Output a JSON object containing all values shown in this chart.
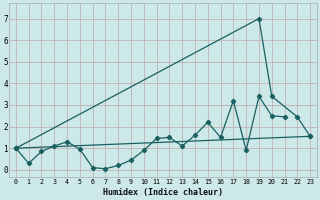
{
  "xlabel": "Humidex (Indice chaleur)",
  "bg_color": "#cce8e8",
  "grid_color": "#c0a8a8",
  "line_color": "#1a6060",
  "ylim": [
    -0.35,
    7.7
  ],
  "xlim": [
    -0.5,
    23.5
  ],
  "yticks": [
    0,
    1,
    2,
    3,
    4,
    5,
    6,
    7
  ],
  "x_labels": [
    "0",
    "1",
    "2",
    "3",
    "4",
    "5",
    "6",
    "7",
    "8",
    "9",
    "10",
    "11",
    "12",
    "13",
    "14",
    "15",
    "16",
    "17",
    "18",
    "19",
    "20",
    "21",
    "22",
    "23"
  ],
  "line1_x": [
    0,
    1,
    2,
    3,
    4,
    5,
    6,
    7,
    8,
    9,
    10,
    11,
    12,
    13,
    14,
    15,
    16,
    17,
    18,
    19,
    20,
    21
  ],
  "line1_y": [
    1.0,
    0.3,
    0.85,
    1.1,
    1.3,
    0.95,
    0.1,
    0.05,
    0.2,
    0.45,
    0.9,
    1.45,
    1.5,
    1.1,
    1.6,
    2.2,
    1.5,
    3.2,
    0.9,
    3.4,
    2.5,
    2.45
  ],
  "line2_x": [
    0,
    19,
    20,
    22,
    23
  ],
  "line2_y": [
    1.0,
    7.0,
    3.4,
    2.45,
    1.55
  ],
  "line3_x": [
    0,
    23
  ],
  "line3_y": [
    1.0,
    1.55
  ],
  "figwidth": 3.2,
  "figheight": 2.0,
  "dpi": 100
}
